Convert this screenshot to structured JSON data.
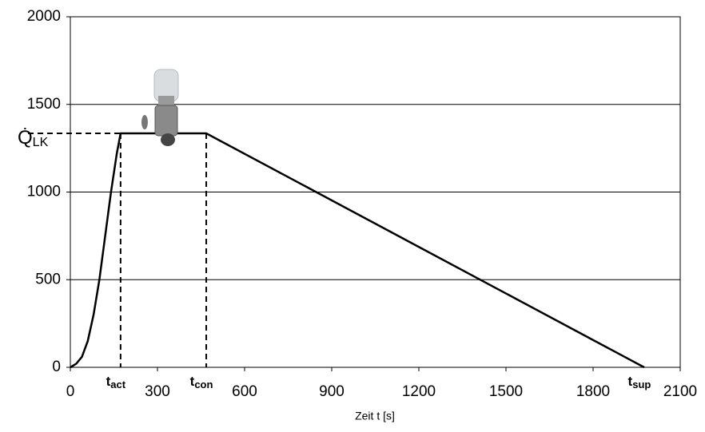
{
  "chart_data": {
    "type": "line",
    "x_label": "Zeit t [s]",
    "x": [
      0,
      20,
      40,
      60,
      80,
      100,
      120,
      140,
      160,
      173,
      468,
      1976
    ],
    "series": [
      {
        "color": "#000000",
        "values": [
          0,
          20,
          60,
          150,
          300,
          500,
          750,
          1000,
          1220,
          1335,
          1335,
          0
        ]
      }
    ],
    "xlim": [
      0,
      2100
    ],
    "xticks": [
      0,
      300,
      600,
      900,
      1200,
      1500,
      1800,
      2100
    ],
    "ylim": [
      0,
      2000
    ],
    "yticks": [
      0,
      500,
      1000,
      1500,
      2000
    ],
    "grid": true,
    "level": {
      "value": 1335,
      "symbol": "Q̇",
      "subscript": "LK"
    },
    "markers": [
      {
        "x": 173,
        "symbol": "t",
        "subscript": "act"
      },
      {
        "x": 468,
        "symbol": "t",
        "subscript": "con"
      },
      {
        "x": 1976,
        "symbol": "t",
        "subscript": "sup"
      }
    ]
  }
}
